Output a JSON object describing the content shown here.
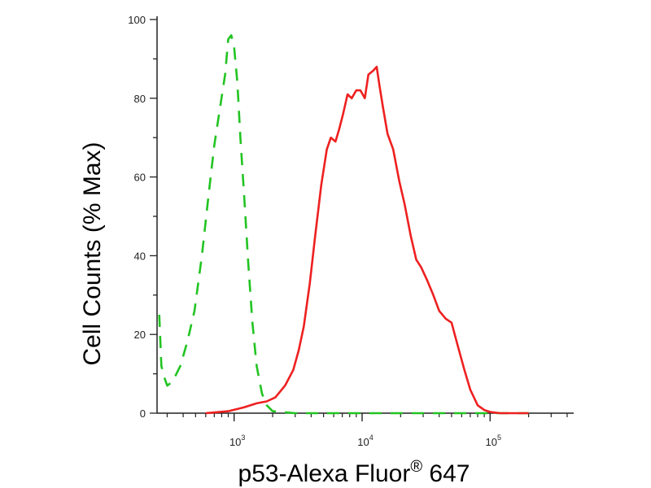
{
  "chart_data": {
    "type": "line",
    "title": "",
    "xlabel": "p53-Alexa Fluor",
    "xlabel_superscript": "®",
    "xlabel_suffix": " 647",
    "ylabel": "Cell Counts (% Max)",
    "xscale": "log",
    "xlim": [
      250,
      450000
    ],
    "ylim": [
      0,
      100
    ],
    "x_major_ticks": [
      1000,
      10000,
      100000
    ],
    "x_tick_labels": [
      {
        "base": "10",
        "exp": "3"
      },
      {
        "base": "10",
        "exp": "4"
      },
      {
        "base": "10",
        "exp": "5"
      }
    ],
    "y_ticks": [
      0,
      20,
      40,
      60,
      80,
      100
    ],
    "y_tick_labels": [
      "0",
      "20",
      "40",
      "60",
      "80",
      "100"
    ],
    "grid": false,
    "legend": "none",
    "series": [
      {
        "color": "#22c422",
        "style": "dashed",
        "points": [
          [
            260,
            25
          ],
          [
            270,
            12
          ],
          [
            285,
            9
          ],
          [
            300,
            7
          ],
          [
            330,
            8
          ],
          [
            380,
            12
          ],
          [
            430,
            18
          ],
          [
            490,
            26
          ],
          [
            560,
            40
          ],
          [
            630,
            55
          ],
          [
            700,
            68
          ],
          [
            780,
            78
          ],
          [
            850,
            86
          ],
          [
            900,
            95
          ],
          [
            950,
            96
          ],
          [
            1000,
            93
          ],
          [
            1060,
            84
          ],
          [
            1120,
            70
          ],
          [
            1200,
            55
          ],
          [
            1290,
            38
          ],
          [
            1390,
            23
          ],
          [
            1500,
            12
          ],
          [
            1650,
            5
          ],
          [
            1800,
            2
          ],
          [
            2000,
            0.5
          ],
          [
            3000,
            0
          ],
          [
            10000,
            0
          ],
          [
            100000,
            0
          ],
          [
            200000,
            0
          ]
        ]
      },
      {
        "color": "#ee2020",
        "style": "solid",
        "points": [
          [
            600,
            0
          ],
          [
            900,
            0.5
          ],
          [
            1200,
            1.5
          ],
          [
            1500,
            2.5
          ],
          [
            1800,
            3
          ],
          [
            2100,
            4
          ],
          [
            2500,
            7
          ],
          [
            2900,
            11
          ],
          [
            3200,
            16
          ],
          [
            3500,
            22
          ],
          [
            3900,
            33
          ],
          [
            4300,
            45
          ],
          [
            4800,
            58
          ],
          [
            5300,
            67
          ],
          [
            5700,
            70
          ],
          [
            6200,
            69
          ],
          [
            6600,
            72
          ],
          [
            7100,
            76
          ],
          [
            7700,
            81
          ],
          [
            8300,
            80
          ],
          [
            9000,
            82
          ],
          [
            9700,
            82
          ],
          [
            10500,
            80
          ],
          [
            11200,
            86
          ],
          [
            12200,
            87
          ],
          [
            13000,
            88
          ],
          [
            13700,
            83
          ],
          [
            14500,
            78
          ],
          [
            15800,
            71
          ],
          [
            17500,
            67
          ],
          [
            19500,
            59
          ],
          [
            21500,
            53
          ],
          [
            24000,
            45
          ],
          [
            26500,
            39
          ],
          [
            29000,
            37
          ],
          [
            32000,
            34
          ],
          [
            36000,
            30
          ],
          [
            40000,
            26
          ],
          [
            45000,
            24
          ],
          [
            50000,
            23
          ],
          [
            56000,
            17
          ],
          [
            63000,
            11
          ],
          [
            70000,
            6
          ],
          [
            80000,
            2
          ],
          [
            90000,
            0.8
          ],
          [
            100000,
            0.3
          ],
          [
            120000,
            0
          ],
          [
            200000,
            0
          ]
        ]
      }
    ]
  }
}
